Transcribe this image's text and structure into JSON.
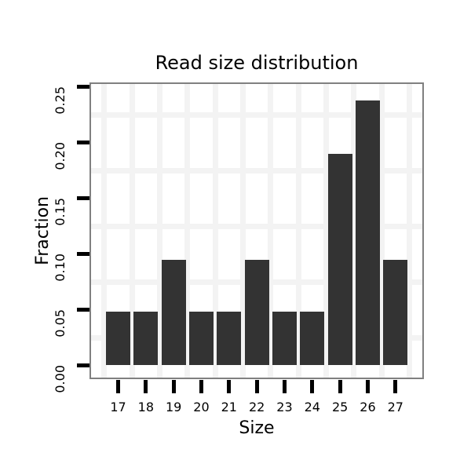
{
  "chart_data": {
    "type": "bar",
    "title": "Read size distribution",
    "xlabel": "Size",
    "ylabel": "Fraction",
    "categories": [
      "17",
      "18",
      "19",
      "20",
      "21",
      "22",
      "23",
      "24",
      "25",
      "26",
      "27"
    ],
    "values": [
      0.048,
      0.048,
      0.095,
      0.048,
      0.048,
      0.095,
      0.048,
      0.048,
      0.19,
      0.238,
      0.095
    ],
    "y_tick_labels": [
      "0.00",
      "0.05",
      "0.10",
      "0.15",
      "0.20",
      "0.25"
    ],
    "y_ticks": [
      0,
      0.05,
      0.1,
      0.15,
      0.2,
      0.25
    ],
    "ylim": [
      0,
      0.25
    ],
    "grid": "on",
    "legend": "none",
    "bar_color": "#333333",
    "grid_color": "#f3f3f3",
    "panel_border_color": "#808080",
    "tick_color": "#000000",
    "text_color": "#000000",
    "background_color": "#ffffff"
  }
}
